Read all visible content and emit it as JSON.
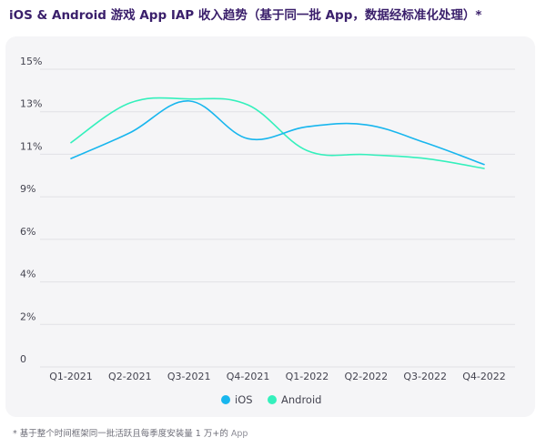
{
  "title": "iOS & Android 游戏 App IAP 收入趋势（基于同一批 App，数据经标准化处理）*",
  "footnote": {
    "text": "* 基于整个时间框架同一批活跃且每季度安装量 1 万+的",
    "app": "App"
  },
  "colors": {
    "ios": "#18b6ee",
    "android": "#34f0bc",
    "grid": "#e1e1e6",
    "axis_text": "#444450",
    "card": "#f5f5f7",
    "title": "#3a1f6b"
  },
  "chart_data": {
    "type": "line",
    "categories": [
      "Q1-2021",
      "Q2-2021",
      "Q3-2021",
      "Q4-2021",
      "Q1-2022",
      "Q2-2022",
      "Q3-2022",
      "Q4-2022"
    ],
    "yticks": [
      "0",
      "2%",
      "4%",
      "6%",
      "9%",
      "11%",
      "13%",
      "15%"
    ],
    "ylim": [
      0,
      15
    ],
    "grid": true,
    "legend_position": "bottom-center",
    "series": [
      {
        "name": "iOS",
        "key": "ios",
        "values": [
          10.5,
          11.8,
          13.4,
          11.5,
          12.1,
          12.2,
          11.3,
          10.2
        ]
      },
      {
        "name": "Android",
        "key": "android",
        "values": [
          11.3,
          13.3,
          13.5,
          13.2,
          10.9,
          10.7,
          10.5,
          10.0
        ]
      }
    ]
  }
}
